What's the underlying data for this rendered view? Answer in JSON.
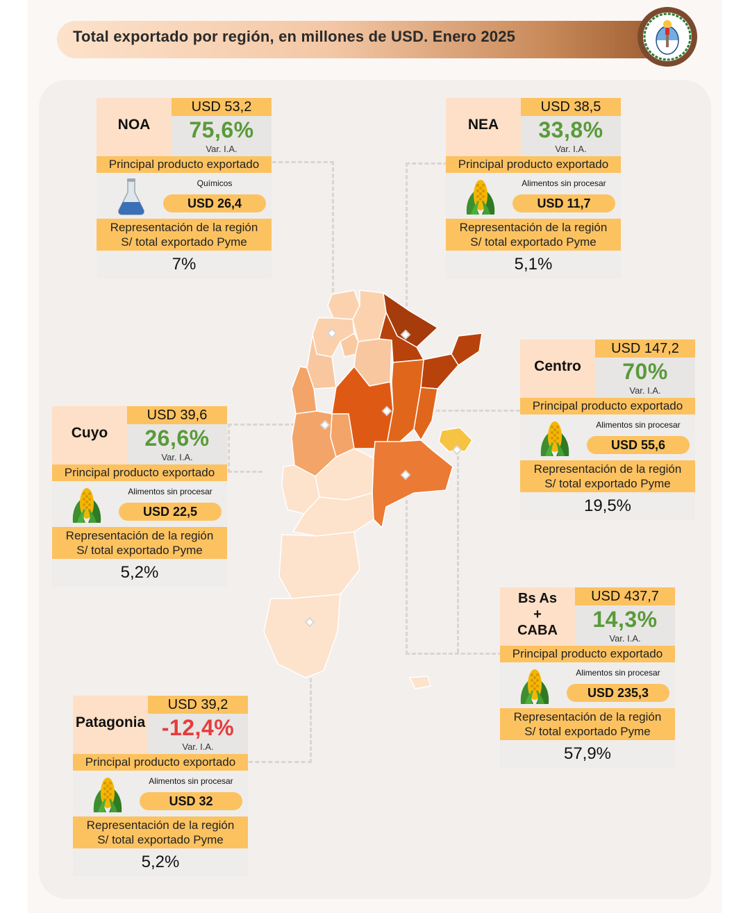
{
  "header": {
    "title": "Total exportado por región, en millones de USD. Enero 2025"
  },
  "labels": {
    "var": "Var. I.A.",
    "product_header": "Principal producto exportado",
    "rep_line1": "Representación de la región",
    "rep_line2": "S/ total exportado Pyme"
  },
  "colors": {
    "accent": "#fcc260",
    "positive": "#5a9a3a",
    "negative": "#e63c3c",
    "name_bg": "#fde0c7"
  },
  "regions": [
    {
      "key": "noa",
      "name": "NOA",
      "usd": "USD 53,2",
      "var": "75,6%",
      "negative": false,
      "product": "Químicos",
      "product_icon": "flask-icon",
      "product_usd": "USD 26,4",
      "share": "7%"
    },
    {
      "key": "nea",
      "name": "NEA",
      "usd": "USD 38,5",
      "var": "33,8%",
      "negative": false,
      "product": "Alimentos sin procesar",
      "product_icon": "corn-icon",
      "product_usd": "USD 11,7",
      "share": "5,1%"
    },
    {
      "key": "centro",
      "name": "Centro",
      "usd": "USD 147,2",
      "var": "70%",
      "negative": false,
      "product": "Alimentos sin procesar",
      "product_icon": "corn-icon",
      "product_usd": "USD 55,6",
      "share": "19,5%"
    },
    {
      "key": "cuyo",
      "name": "Cuyo",
      "usd": "USD 39,6",
      "var": "26,6%",
      "negative": false,
      "product": "Alimentos sin procesar",
      "product_icon": "corn-icon",
      "product_usd": "USD 22,5",
      "share": "5,2%"
    },
    {
      "key": "bsas",
      "name": "Bs As\n+\nCABA",
      "usd": "USD 437,7",
      "var": "14,3%",
      "negative": false,
      "product": "Alimentos sin procesar",
      "product_icon": "corn-icon",
      "product_usd": "USD 235,3",
      "share": "57,9%"
    },
    {
      "key": "patagonia",
      "name": "Patagonia",
      "usd": "USD 39,2",
      "var": "-12,4%",
      "negative": true,
      "product": "Alimentos sin procesar",
      "product_icon": "corn-icon",
      "product_usd": "USD 32",
      "share": "5,2%"
    }
  ],
  "map_legend": {
    "shades": [
      "#fde2cc",
      "#f8c79f",
      "#f3a468",
      "#eb7a34",
      "#de5a14",
      "#b8420c",
      "#a63b0b"
    ]
  }
}
